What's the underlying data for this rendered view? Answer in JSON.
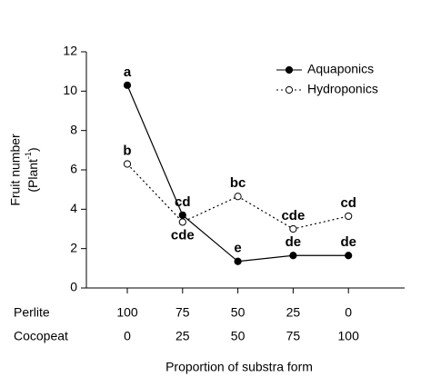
{
  "chart_data": {
    "type": "line",
    "ylabel": "Fruit number",
    "ylabel_unit": {
      "text": "(Plant",
      "sup": "-1",
      "close": ")"
    },
    "xlabel": "Proportion of substra form",
    "categories": [
      "100",
      "75",
      "50",
      "25",
      "0"
    ],
    "x_label_rows": [
      {
        "name": "Perlite",
        "labels": [
          "100",
          "75",
          "50",
          "25",
          "0"
        ]
      },
      {
        "name": "Cocopeat",
        "labels": [
          "0",
          "25",
          "50",
          "75",
          "100"
        ]
      }
    ],
    "ylim": [
      0,
      12
    ],
    "yticks": [
      0,
      2,
      4,
      6,
      8,
      10,
      12
    ],
    "legend": "upper right",
    "series": [
      {
        "name": "Aquaponics",
        "color": "#000000",
        "line": "solid",
        "marker_fill": "#000000",
        "values": [
          10.3,
          3.7,
          1.35,
          1.65,
          1.65
        ],
        "letters": [
          "a",
          "cd",
          "e",
          "de",
          "de"
        ]
      },
      {
        "name": "Hydroponics",
        "color": "#000000",
        "line": "dotted",
        "marker_fill": "#ffffff",
        "values": [
          6.3,
          3.35,
          4.65,
          3.0,
          3.65
        ],
        "letters": [
          "b",
          "cde",
          "bc",
          "cde",
          "cd"
        ]
      }
    ]
  }
}
